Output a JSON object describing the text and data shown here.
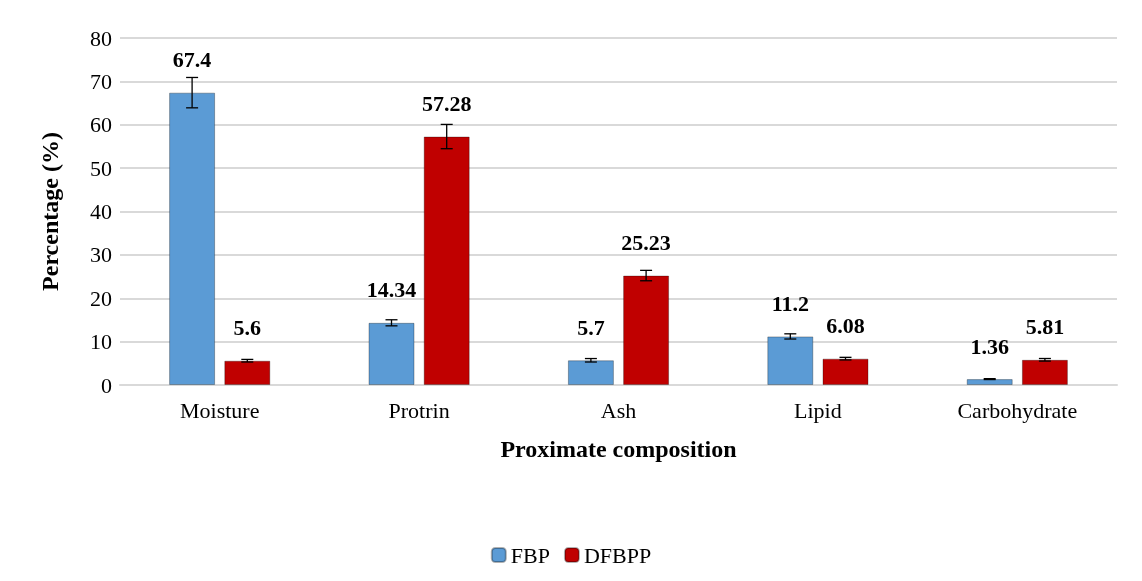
{
  "chart_data": {
    "type": "bar",
    "xlabel": "Proximate composition",
    "ylabel": "Percentage (%)",
    "categories": [
      "Moisture",
      "Protrin",
      "Ash",
      "Lipid",
      "Carbohydrate"
    ],
    "series": [
      {
        "name": "FBP",
        "color": "#5b9bd5",
        "values": [
          67.4,
          14.34,
          5.7,
          11.2,
          1.36
        ],
        "errors": [
          3.5,
          0.7,
          0.4,
          0.6,
          0.1
        ]
      },
      {
        "name": "DFBPP",
        "color": "#c00000",
        "values": [
          5.6,
          57.28,
          25.23,
          6.08,
          5.81
        ],
        "errors": [
          0.3,
          2.8,
          1.2,
          0.3,
          0.3
        ]
      }
    ],
    "ylim": [
      0,
      80
    ],
    "yticks": [
      0,
      10,
      20,
      30,
      40,
      50,
      60,
      70,
      80
    ],
    "grid": "y",
    "legend": "bottom",
    "data_labels": true
  }
}
